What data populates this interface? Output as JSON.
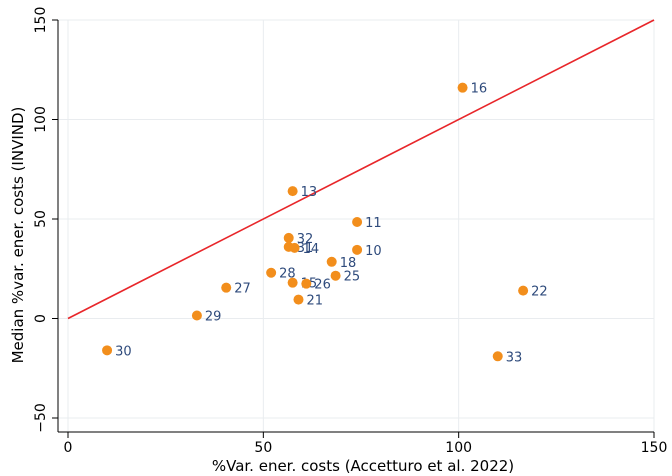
{
  "chart_data": {
    "type": "scatter",
    "title": "",
    "xlabel": "%Var. ener. costs (Accetturo et al. 2022)",
    "ylabel": "Median %var. ener. costs (INVIND)",
    "xlim": [
      0,
      150
    ],
    "ylim": [
      -50,
      150
    ],
    "xticks": [
      "0",
      "50",
      "100",
      "150"
    ],
    "yticks": [
      "−50",
      "0",
      "50",
      "100",
      "150"
    ],
    "grid": true,
    "marker_color": "#f28e1c",
    "label_color": "#2f4b7c",
    "line_color": "#e8262a",
    "reference_line": {
      "type": "45-degree",
      "x": [
        0,
        150
      ],
      "y": [
        0,
        150
      ]
    },
    "points": [
      {
        "label": "16",
        "x": 101,
        "y": 116
      },
      {
        "label": "13",
        "x": 57.5,
        "y": 64
      },
      {
        "label": "11",
        "x": 74,
        "y": 48.5
      },
      {
        "label": "32",
        "x": 56.5,
        "y": 40.5
      },
      {
        "label": "31",
        "x": 56.5,
        "y": 36
      },
      {
        "label": "14",
        "x": 58,
        "y": 35.5
      },
      {
        "label": "10",
        "x": 74,
        "y": 34.5
      },
      {
        "label": "18",
        "x": 67.5,
        "y": 28.5
      },
      {
        "label": "28",
        "x": 52,
        "y": 23
      },
      {
        "label": "25",
        "x": 68.5,
        "y": 21.5
      },
      {
        "label": "15",
        "x": 57.5,
        "y": 18
      },
      {
        "label": "26",
        "x": 61,
        "y": 17.5
      },
      {
        "label": "27",
        "x": 40.5,
        "y": 15.5
      },
      {
        "label": "22",
        "x": 116.5,
        "y": 14
      },
      {
        "label": "21",
        "x": 59,
        "y": 9.5
      },
      {
        "label": "29",
        "x": 33,
        "y": 1.5
      },
      {
        "label": "30",
        "x": 10,
        "y": -16
      },
      {
        "label": "33",
        "x": 110,
        "y": -19
      }
    ]
  }
}
